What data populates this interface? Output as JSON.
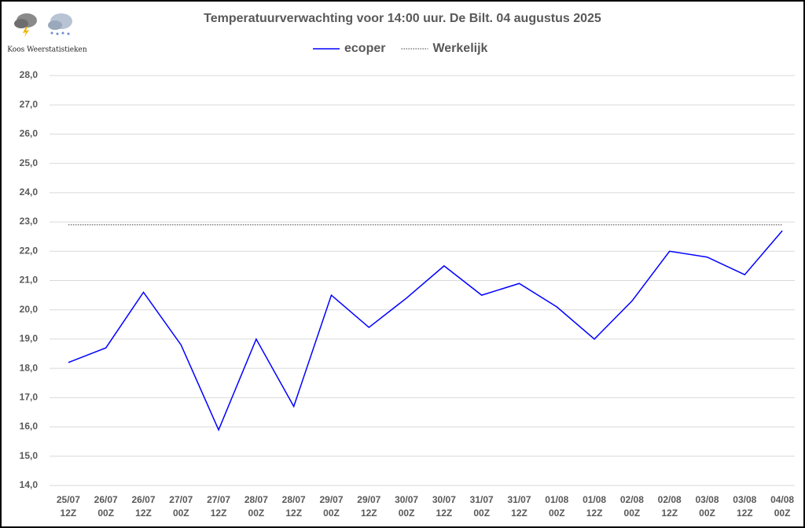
{
  "chart_data": {
    "type": "line",
    "title": "Temperatuurverwachting voor 14:00 uur. De Bilt. 04 augustus 2025",
    "brand": "Koos Weerstatistieken",
    "categories": [
      [
        "25/07",
        "12Z"
      ],
      [
        "26/07",
        "00Z"
      ],
      [
        "26/07",
        "12Z"
      ],
      [
        "27/07",
        "00Z"
      ],
      [
        "27/07",
        "12Z"
      ],
      [
        "28/07",
        "00Z"
      ],
      [
        "28/07",
        "12Z"
      ],
      [
        "29/07",
        "00Z"
      ],
      [
        "29/07",
        "12Z"
      ],
      [
        "30/07",
        "00Z"
      ],
      [
        "30/07",
        "12Z"
      ],
      [
        "31/07",
        "00Z"
      ],
      [
        "31/07",
        "12Z"
      ],
      [
        "01/08",
        "00Z"
      ],
      [
        "01/08",
        "12Z"
      ],
      [
        "02/08",
        "00Z"
      ],
      [
        "02/08",
        "12Z"
      ],
      [
        "03/08",
        "00Z"
      ],
      [
        "03/08",
        "12Z"
      ],
      [
        "04/08",
        "00Z"
      ]
    ],
    "series": [
      {
        "name": "ecoper",
        "color": "#0000ff",
        "dash": "solid",
        "values": [
          18.2,
          18.7,
          20.6,
          18.8,
          15.9,
          19.0,
          16.7,
          20.5,
          19.4,
          20.4,
          21.5,
          20.5,
          20.9,
          20.1,
          19.0,
          20.3,
          22.0,
          21.8,
          21.2,
          22.7
        ]
      },
      {
        "name": "Werkelijk",
        "color": "#404040",
        "dash": "dotted",
        "values": [
          22.9,
          22.9,
          22.9,
          22.9,
          22.9,
          22.9,
          22.9,
          22.9,
          22.9,
          22.9,
          22.9,
          22.9,
          22.9,
          22.9,
          22.9,
          22.9,
          22.9,
          22.9,
          22.9,
          22.9
        ]
      }
    ],
    "ylim": [
      14,
      28
    ],
    "yticks": [
      {
        "value": 14,
        "label": "14,0"
      },
      {
        "value": 15,
        "label": "15,0"
      },
      {
        "value": 16,
        "label": "16,0"
      },
      {
        "value": 17,
        "label": "17,0"
      },
      {
        "value": 18,
        "label": "18,0"
      },
      {
        "value": 19,
        "label": "19,0"
      },
      {
        "value": 20,
        "label": "20,0"
      },
      {
        "value": 21,
        "label": "21,0"
      },
      {
        "value": 22,
        "label": "22,0"
      },
      {
        "value": 23,
        "label": "23,0"
      },
      {
        "value": 24,
        "label": "24,0"
      },
      {
        "value": 25,
        "label": "25,0"
      },
      {
        "value": 26,
        "label": "26,0"
      },
      {
        "value": 27,
        "label": "27,0"
      },
      {
        "value": 28,
        "label": "28,0"
      }
    ],
    "grid": true,
    "legend": "top"
  }
}
